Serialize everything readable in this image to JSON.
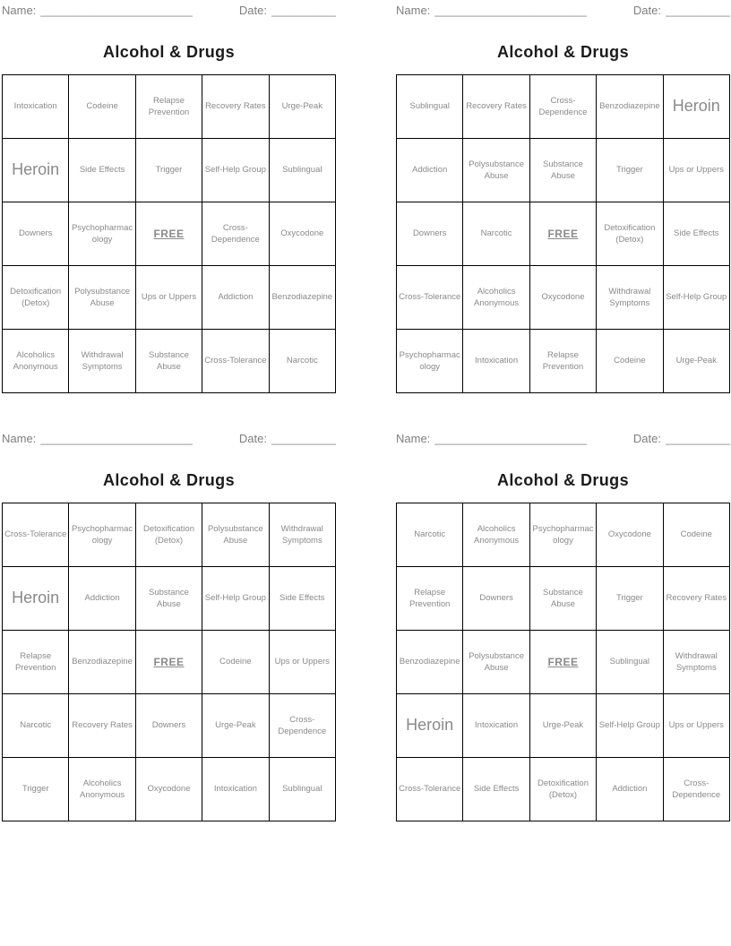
{
  "labels": {
    "name": "Name:",
    "name_line": "__________________________",
    "date": "Date:",
    "date_line": "____________"
  },
  "colors": {
    "cell_text": "#8a8a8a",
    "title_text": "#1b1b1b",
    "header_text": "#7e7e7e",
    "grid_line": "#000000",
    "background": "#ffffff"
  },
  "free_space_label": "FREE",
  "cards": [
    {
      "title": "Alcohol & Drugs",
      "rows": [
        [
          "Intoxication",
          "Codeine",
          "Relapse Prevention",
          "Recovery Rates",
          "Urge-Peak"
        ],
        [
          {
            "text": "Heroin",
            "style": "big"
          },
          "Side Effects",
          "Trigger",
          "Self-Help Group",
          "Sublingual"
        ],
        [
          "Downers",
          "Psychopharmacology",
          {
            "text": "FREE",
            "style": "free"
          },
          "Cross-Dependence",
          "Oxycodone"
        ],
        [
          "Detoxification (Detox)",
          "Polysubstance Abuse",
          "Ups or Uppers",
          "Addiction",
          "Benzodiazepine"
        ],
        [
          "Alcoholics Anonymous",
          "Withdrawal Symptoms",
          "Substance Abuse",
          "Cross-Tolerance",
          "Narcotic"
        ]
      ]
    },
    {
      "title": "Alcohol & Drugs",
      "rows": [
        [
          "Sublingual",
          "Recovery Rates",
          "Cross-Dependence",
          "Benzodiazepine",
          {
            "text": "Heroin",
            "style": "big"
          }
        ],
        [
          "Addiction",
          "Polysubstance Abuse",
          "Substance Abuse",
          "Trigger",
          "Ups or Uppers"
        ],
        [
          "Downers",
          "Narcotic",
          {
            "text": "FREE",
            "style": "free"
          },
          "Detoxification (Detox)",
          "Side Effects"
        ],
        [
          "Cross-Tolerance",
          "Alcoholics Anonymous",
          "Oxycodone",
          "Withdrawal Symptoms",
          "Self-Help Group"
        ],
        [
          "Psychopharmacology",
          "Intoxication",
          "Relapse Prevention",
          "Codeine",
          "Urge-Peak"
        ]
      ]
    },
    {
      "title": "Alcohol & Drugs",
      "rows": [
        [
          "Cross-Tolerance",
          "Psychopharmacology",
          "Detoxification (Detox)",
          "Polysubstance Abuse",
          "Withdrawal Symptoms"
        ],
        [
          {
            "text": "Heroin",
            "style": "big"
          },
          "Addiction",
          "Substance Abuse",
          "Self-Help Group",
          "Side Effects"
        ],
        [
          "Relapse Prevention",
          "Benzodiazepine",
          {
            "text": "FREE",
            "style": "free"
          },
          "Codeine",
          "Ups or Uppers"
        ],
        [
          "Narcotic",
          "Recovery Rates",
          "Downers",
          "Urge-Peak",
          "Cross-Dependence"
        ],
        [
          "Trigger",
          "Alcoholics Anonymous",
          "Oxycodone",
          "Intoxication",
          "Sublingual"
        ]
      ]
    },
    {
      "title": "Alcohol & Drugs",
      "rows": [
        [
          "Narcotic",
          "Alcoholics Anonymous",
          "Psychopharmacology",
          "Oxycodone",
          "Codeine"
        ],
        [
          "Relapse Prevention",
          "Downers",
          "Substance Abuse",
          "Trigger",
          "Recovery Rates"
        ],
        [
          "Benzodiazepine",
          "Polysubstance Abuse",
          {
            "text": "FREE",
            "style": "free"
          },
          "Sublingual",
          "Withdrawal Symptoms"
        ],
        [
          {
            "text": "Heroin",
            "style": "big"
          },
          "Intoxication",
          "Urge-Peak",
          "Self-Help Group",
          "Ups or Uppers"
        ],
        [
          "Cross-Tolerance",
          "Side Effects",
          "Detoxification (Detox)",
          "Addiction",
          "Cross-Dependence"
        ]
      ]
    }
  ]
}
